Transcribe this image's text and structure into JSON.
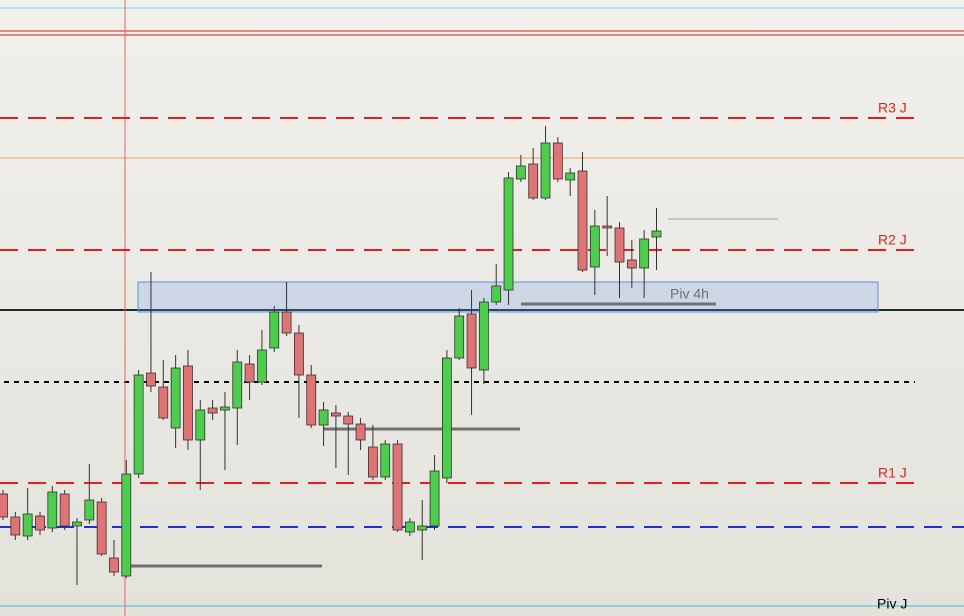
{
  "chart_data": {
    "type": "candlestick",
    "ylim": [
      0,
      616
    ],
    "up_color": "#4ccd4c",
    "down_color": "#e07474",
    "open": [
      122,
      99,
      80,
      100,
      88,
      122,
      90,
      96,
      114,
      58,
      40,
      142,
      243,
      229,
      188,
      250,
      176,
      208,
      206,
      208,
      252,
      234,
      268,
      304,
      283,
      241,
      191,
      203,
      200,
      192,
      169,
      139,
      172,
      84,
      86,
      90,
      138,
      258,
      302,
      246,
      314,
      326,
      437,
      452,
      418,
      473,
      436,
      445,
      349,
      390,
      388,
      356,
      348,
      379
    ],
    "high": [
      126,
      104,
      128,
      104,
      130,
      126,
      98,
      152,
      118,
      76,
      156,
      246,
      344,
      256,
      261,
      266,
      216,
      216,
      224,
      266,
      261,
      286,
      310,
      334,
      291,
      251,
      214,
      211,
      204,
      198,
      191,
      176,
      176,
      98,
      116,
      161,
      266,
      308,
      326,
      318,
      352,
      444,
      461,
      468,
      490,
      479,
      448,
      464,
      406,
      420,
      394,
      376,
      386,
      408
    ],
    "low": [
      96,
      76,
      76,
      81,
      84,
      86,
      31,
      92,
      60,
      40,
      38,
      138,
      224,
      196,
      168,
      166,
      126,
      196,
      146,
      171,
      216,
      231,
      264,
      280,
      198,
      188,
      170,
      148,
      141,
      166,
      136,
      136,
      84,
      80,
      56,
      86,
      133,
      256,
      201,
      232,
      311,
      311,
      434,
      416,
      416,
      434,
      420,
      344,
      321,
      360,
      318,
      328,
      318,
      346
    ],
    "close": [
      99,
      81,
      102,
      86,
      124,
      90,
      94,
      116,
      62,
      44,
      142,
      241,
      230,
      198,
      248,
      176,
      206,
      203,
      209,
      254,
      234,
      266,
      304,
      283,
      241,
      191,
      206,
      200,
      192,
      176,
      139,
      172,
      86,
      94,
      90,
      145,
      258,
      300,
      248,
      314,
      330,
      438,
      450,
      418,
      473,
      437,
      443,
      346,
      390,
      388,
      354,
      348,
      377,
      385
    ],
    "levels": [
      {
        "label": "R3 J",
        "value": 498,
        "color": "#e02020",
        "style": "dashed"
      },
      {
        "label": "R2 J",
        "value": 366,
        "color": "#e02020",
        "style": "dashed"
      },
      {
        "label": "Piv 4h",
        "value": 312,
        "color": "#707070",
        "style": "short"
      },
      {
        "label": "R1 J",
        "value": 133,
        "color": "#e02020",
        "style": "dashed"
      },
      {
        "label": "Piv J",
        "value": 7,
        "color": "#20c8d8",
        "style": "solid"
      }
    ]
  }
}
